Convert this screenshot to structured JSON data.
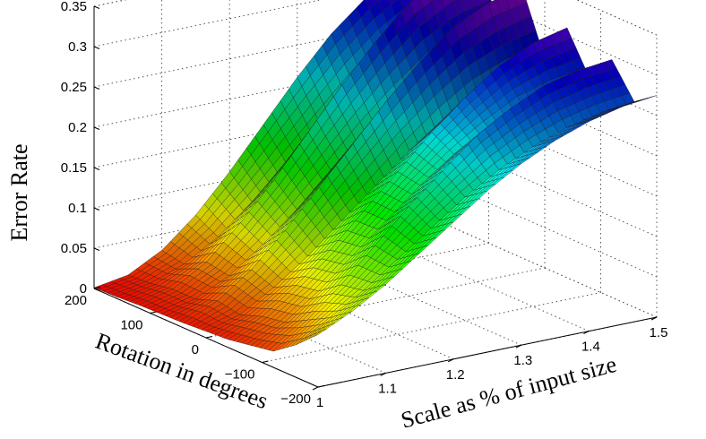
{
  "chart_data": {
    "type": "surface3d",
    "title": "",
    "xlabel": "Scale as % of input size",
    "ylabel": "Rotation in degrees",
    "zlabel": "Error Rate",
    "x_ticks": [
      "1",
      "1.1",
      "1.2",
      "1.3",
      "1.4",
      "1.5"
    ],
    "y_ticks": [
      "200",
      "100",
      "0",
      "−100",
      "−200"
    ],
    "z_ticks": [
      "0",
      "0.05",
      "0.1",
      "0.15",
      "0.2",
      "0.25",
      "0.3",
      "0.35"
    ],
    "xlim": [
      1,
      1.5
    ],
    "ylim": [
      -200,
      200
    ],
    "zlim": [
      0,
      0.35
    ],
    "grid": true,
    "colormap": "hsv",
    "x": [
      1.0,
      1.05,
      1.1,
      1.15,
      1.2,
      1.25,
      1.3,
      1.35,
      1.4,
      1.45,
      1.5
    ],
    "y": [
      -200,
      -160,
      -120,
      -80,
      -40,
      0,
      40,
      80,
      120,
      160,
      200
    ],
    "z": [
      [
        0.065,
        0.085,
        0.11,
        0.14,
        0.17,
        0.2,
        0.225,
        0.245,
        0.26,
        0.27,
        0.275
      ],
      [
        0.04,
        0.065,
        0.09,
        0.12,
        0.15,
        0.18,
        0.205,
        0.225,
        0.24,
        0.25,
        0.255
      ],
      [
        0.02,
        0.05,
        0.085,
        0.125,
        0.165,
        0.2,
        0.235,
        0.26,
        0.28,
        0.29,
        0.295
      ],
      [
        0.015,
        0.035,
        0.065,
        0.1,
        0.135,
        0.17,
        0.2,
        0.225,
        0.245,
        0.255,
        0.26
      ],
      [
        0.01,
        0.03,
        0.06,
        0.095,
        0.135,
        0.175,
        0.215,
        0.25,
        0.28,
        0.3,
        0.31
      ],
      [
        0.008,
        0.02,
        0.045,
        0.075,
        0.11,
        0.145,
        0.18,
        0.21,
        0.235,
        0.25,
        0.26
      ],
      [
        0.006,
        0.025,
        0.055,
        0.095,
        0.14,
        0.185,
        0.23,
        0.27,
        0.305,
        0.325,
        0.335
      ],
      [
        0.005,
        0.015,
        0.035,
        0.065,
        0.1,
        0.14,
        0.18,
        0.215,
        0.245,
        0.265,
        0.275
      ],
      [
        0.004,
        0.015,
        0.04,
        0.08,
        0.125,
        0.175,
        0.225,
        0.27,
        0.31,
        0.335,
        0.345
      ],
      [
        0.002,
        0.01,
        0.025,
        0.05,
        0.085,
        0.125,
        0.165,
        0.205,
        0.24,
        0.265,
        0.28
      ],
      [
        0.001,
        0.008,
        0.03,
        0.065,
        0.11,
        0.16,
        0.21,
        0.255,
        0.29,
        0.315,
        0.33
      ]
    ]
  }
}
